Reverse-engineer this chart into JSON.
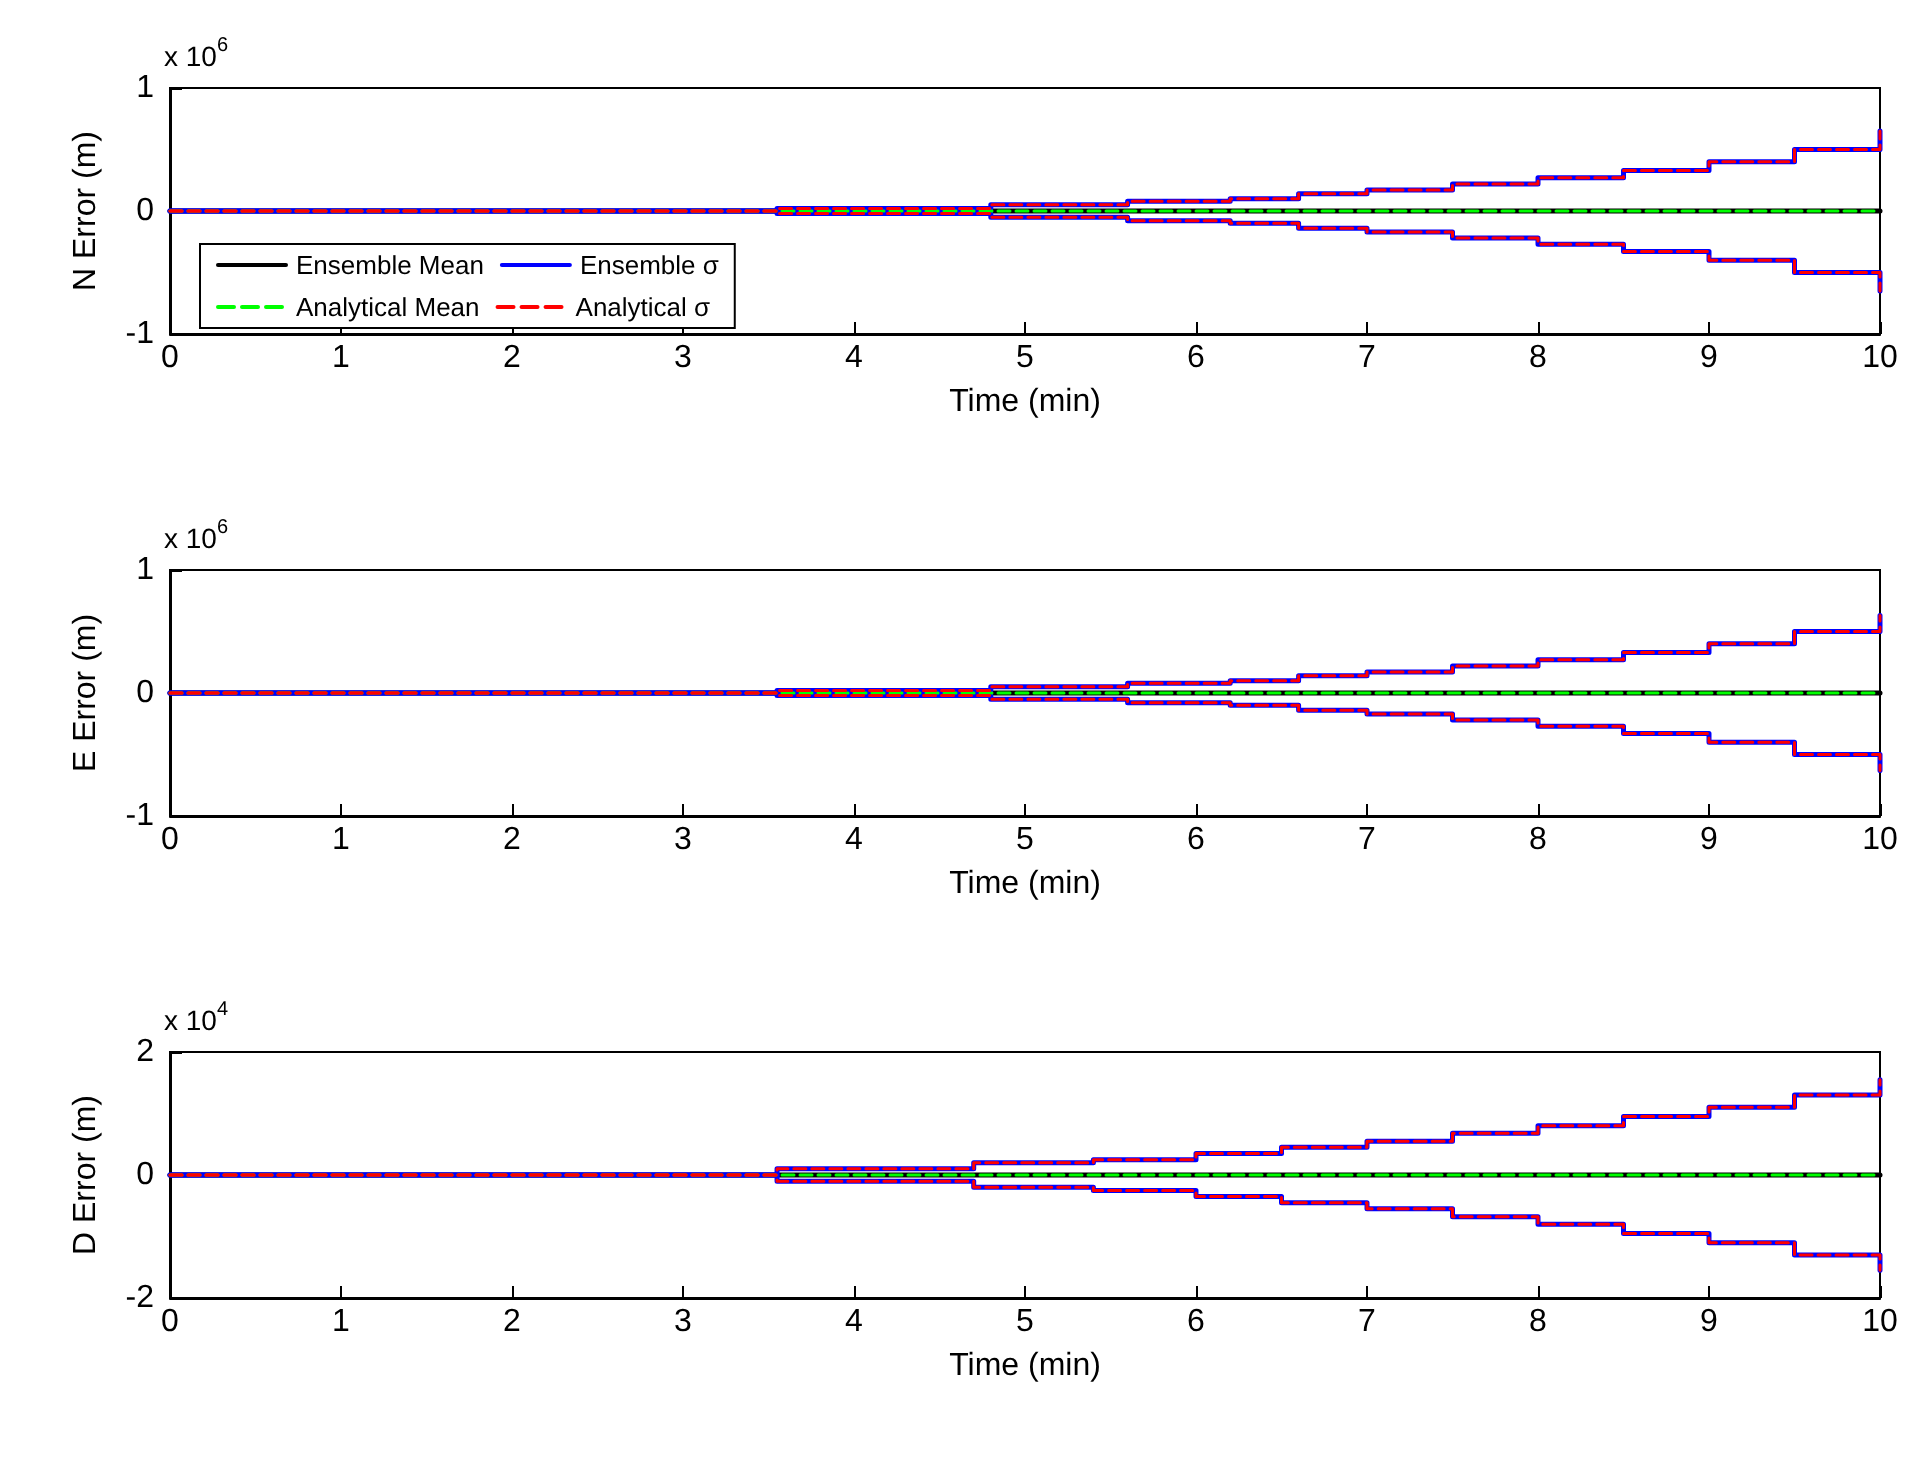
{
  "chart_data": [
    {
      "type": "step",
      "xlabel": "Time (min)",
      "ylabel": "N Error (m)",
      "annotations": [
        "x 10$^{6}$"
      ],
      "xlim": [
        0,
        10
      ],
      "xticks": [
        0,
        1,
        2,
        3,
        4,
        5,
        6,
        7,
        8,
        9,
        10
      ],
      "ylim": [
        -1,
        1
      ],
      "yticks": [
        -1,
        0,
        1
      ],
      "grid": false,
      "legend": "bottom left",
      "marker": "none",
      "series": [
        {
          "name": "Ensemble Mean",
          "color": "#000000",
          "line_style": "solid",
          "x": [
            0,
            10
          ],
          "values": [
            0,
            0
          ]
        },
        {
          "name": "Ensemble σ",
          "color": "#0000ff",
          "line_style": "solid",
          "x": [
            0,
            3.55,
            4.8,
            5.6,
            6.2,
            6.6,
            7,
            7.5,
            8,
            8.5,
            9,
            9.5,
            10
          ],
          "values": [
            0,
            0.02,
            0.05,
            0.08,
            0.1,
            0.14,
            0.17,
            0.22,
            0.27,
            0.33,
            0.4,
            0.5,
            0.65
          ]
        },
        {
          "color": "#0000ff",
          "line_style": "solid",
          "x": [
            0,
            3.55,
            4.8,
            5.6,
            6.2,
            6.6,
            7,
            7.5,
            8,
            8.5,
            9,
            9.5,
            10
          ],
          "values": [
            0,
            -0.02,
            -0.05,
            -0.08,
            -0.1,
            -0.14,
            -0.17,
            -0.22,
            -0.27,
            -0.33,
            -0.4,
            -0.5,
            -0.65
          ]
        },
        {
          "name": "Analytical Mean",
          "color": "#00ff00",
          "line_style": "dashed",
          "x": [
            0,
            10
          ],
          "values": [
            0,
            0
          ]
        },
        {
          "name": "Analytical σ",
          "color": "#ff0000",
          "line_style": "dashed",
          "x": [
            0,
            3.55,
            4.8,
            5.6,
            6.2,
            6.6,
            7,
            7.5,
            8,
            8.5,
            9,
            9.5,
            10
          ],
          "values": [
            0,
            0.02,
            0.05,
            0.08,
            0.1,
            0.14,
            0.17,
            0.22,
            0.27,
            0.33,
            0.4,
            0.5,
            0.65
          ]
        },
        {
          "color": "#ff0000",
          "line_style": "dashed",
          "x": [
            0,
            3.55,
            4.8,
            5.6,
            6.2,
            6.6,
            7,
            7.5,
            8,
            8.5,
            9,
            9.5,
            10
          ],
          "values": [
            0,
            -0.02,
            -0.05,
            -0.08,
            -0.1,
            -0.14,
            -0.17,
            -0.22,
            -0.27,
            -0.33,
            -0.4,
            -0.5,
            -0.65
          ]
        }
      ]
    },
    {
      "type": "step",
      "xlabel": "Time (min)",
      "ylabel": "E Error (m)",
      "annotations": [
        "x 10$^{6}$"
      ],
      "xlim": [
        0,
        10
      ],
      "xticks": [
        0,
        1,
        2,
        3,
        4,
        5,
        6,
        7,
        8,
        9,
        10
      ],
      "ylim": [
        -1,
        1
      ],
      "yticks": [
        -1,
        0,
        1
      ],
      "grid": false,
      "legend": false,
      "marker": "none",
      "series": [
        {
          "color": "#000000",
          "line_style": "solid",
          "x": [
            0,
            10
          ],
          "values": [
            0,
            0
          ]
        },
        {
          "color": "#0000ff",
          "line_style": "solid",
          "x": [
            0,
            3.55,
            4.8,
            5.6,
            6.2,
            6.6,
            7,
            7.5,
            8,
            8.5,
            9,
            9.5,
            10
          ],
          "values": [
            0,
            0.02,
            0.05,
            0.08,
            0.1,
            0.14,
            0.17,
            0.22,
            0.27,
            0.33,
            0.4,
            0.5,
            0.63
          ]
        },
        {
          "color": "#0000ff",
          "line_style": "solid",
          "x": [
            0,
            3.55,
            4.8,
            5.6,
            6.2,
            6.6,
            7,
            7.5,
            8,
            8.5,
            9,
            9.5,
            10
          ],
          "values": [
            0,
            -0.02,
            -0.05,
            -0.08,
            -0.1,
            -0.14,
            -0.17,
            -0.22,
            -0.27,
            -0.33,
            -0.4,
            -0.5,
            -0.63
          ]
        },
        {
          "color": "#00ff00",
          "line_style": "dashed",
          "x": [
            0,
            10
          ],
          "values": [
            0,
            0
          ]
        },
        {
          "color": "#ff0000",
          "line_style": "dashed",
          "x": [
            0,
            3.55,
            4.8,
            5.6,
            6.2,
            6.6,
            7,
            7.5,
            8,
            8.5,
            9,
            9.5,
            10
          ],
          "values": [
            0,
            0.02,
            0.05,
            0.08,
            0.1,
            0.14,
            0.17,
            0.22,
            0.27,
            0.33,
            0.4,
            0.5,
            0.63
          ]
        },
        {
          "color": "#ff0000",
          "line_style": "dashed",
          "x": [
            0,
            3.55,
            4.8,
            5.6,
            6.2,
            6.6,
            7,
            7.5,
            8,
            8.5,
            9,
            9.5,
            10
          ],
          "values": [
            0,
            -0.02,
            -0.05,
            -0.08,
            -0.1,
            -0.14,
            -0.17,
            -0.22,
            -0.27,
            -0.33,
            -0.4,
            -0.5,
            -0.63
          ]
        }
      ]
    },
    {
      "type": "step",
      "xlabel": "Time (min)",
      "ylabel": "D Error (m)",
      "annotations": [
        "x 10$^{4}$"
      ],
      "xlim": [
        0,
        10
      ],
      "xticks": [
        0,
        1,
        2,
        3,
        4,
        5,
        6,
        7,
        8,
        9,
        10
      ],
      "ylim": [
        -2,
        2
      ],
      "yticks": [
        -2,
        0,
        2
      ],
      "grid": false,
      "legend": false,
      "marker": "none",
      "series": [
        {
          "color": "#000000",
          "line_style": "solid",
          "x": [
            0,
            10
          ],
          "values": [
            0,
            0
          ]
        },
        {
          "color": "#0000ff",
          "line_style": "solid",
          "x": [
            0,
            3.55,
            4.7,
            5.4,
            6,
            6.5,
            7,
            7.5,
            8,
            8.5,
            9,
            9.5,
            10
          ],
          "values": [
            0,
            0.1,
            0.2,
            0.25,
            0.35,
            0.45,
            0.55,
            0.68,
            0.8,
            0.95,
            1.1,
            1.3,
            1.55
          ]
        },
        {
          "color": "#0000ff",
          "line_style": "solid",
          "x": [
            0,
            3.55,
            4.7,
            5.4,
            6,
            6.5,
            7,
            7.5,
            8,
            8.5,
            9,
            9.5,
            10
          ],
          "values": [
            0,
            -0.1,
            -0.2,
            -0.25,
            -0.35,
            -0.45,
            -0.55,
            -0.68,
            -0.8,
            -0.95,
            -1.1,
            -1.3,
            -1.55
          ]
        },
        {
          "color": "#00ff00",
          "line_style": "dashed",
          "x": [
            0,
            10
          ],
          "values": [
            0,
            0
          ]
        },
        {
          "color": "#ff0000",
          "line_style": "dashed",
          "x": [
            0,
            3.55,
            4.7,
            5.4,
            6,
            6.5,
            7,
            7.5,
            8,
            8.5,
            9,
            9.5,
            10
          ],
          "values": [
            0,
            0.1,
            0.2,
            0.25,
            0.35,
            0.45,
            0.55,
            0.68,
            0.8,
            0.95,
            1.1,
            1.3,
            1.55
          ]
        },
        {
          "color": "#ff0000",
          "line_style": "dashed",
          "x": [
            0,
            3.55,
            4.7,
            5.4,
            6,
            6.5,
            7,
            7.5,
            8,
            8.5,
            9,
            9.5,
            10
          ],
          "values": [
            0,
            -0.1,
            -0.2,
            -0.25,
            -0.35,
            -0.45,
            -0.55,
            -0.68,
            -0.8,
            -0.95,
            -1.1,
            -1.3,
            -1.55
          ]
        }
      ]
    }
  ]
}
